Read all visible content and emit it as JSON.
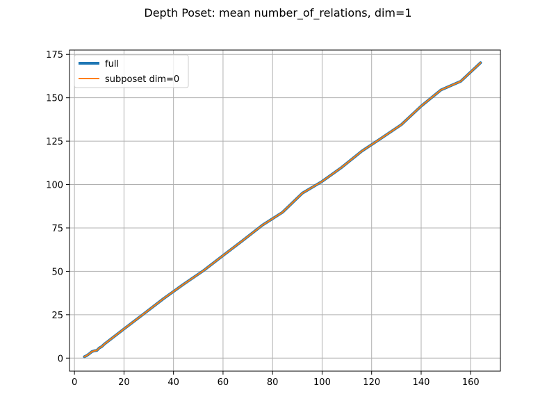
{
  "chart_data": {
    "type": "line",
    "title": "Depth Poset: mean number_of_relations, dim=1",
    "xlabel": "",
    "ylabel": "",
    "xlim": [
      -2.0,
      172.0
    ],
    "ylim": [
      -7.5,
      177.5
    ],
    "xticks": [
      0,
      20,
      40,
      60,
      80,
      100,
      120,
      140,
      160
    ],
    "yticks": [
      0,
      25,
      50,
      75,
      100,
      125,
      150,
      175
    ],
    "grid": true,
    "legend_position": "upper left",
    "x": [
      4,
      5,
      6,
      7,
      8,
      9,
      10,
      11,
      12,
      20,
      28,
      36,
      44,
      52,
      60,
      68,
      76,
      84,
      92,
      100,
      108,
      116,
      124,
      132,
      140,
      148,
      156,
      164
    ],
    "series": [
      {
        "name": "full",
        "color": "#1f77b4",
        "values": [
          0.8,
          1.5,
          2.5,
          3.7,
          4.2,
          4.4,
          5.8,
          6.6,
          8.0,
          16.8,
          25.5,
          34.3,
          42.5,
          50.3,
          59.1,
          67.8,
          76.7,
          84.0,
          95.0,
          101.8,
          110.0,
          119.2,
          126.8,
          134.5,
          145.2,
          154.5,
          159.5,
          170.2
        ]
      },
      {
        "name": "subposet dim=0",
        "color": "#ff7f0e",
        "values": [
          0.8,
          1.5,
          2.5,
          3.7,
          4.2,
          4.4,
          5.8,
          6.6,
          8.0,
          16.8,
          25.5,
          34.3,
          42.5,
          50.3,
          59.1,
          67.8,
          76.7,
          84.0,
          95.0,
          101.8,
          110.0,
          119.2,
          126.8,
          134.5,
          145.2,
          154.5,
          159.5,
          170.2
        ]
      }
    ]
  }
}
